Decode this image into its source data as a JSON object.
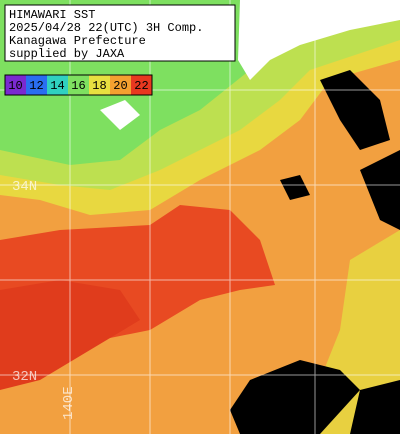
{
  "header": {
    "lines": [
      "HIMAWARI SST",
      "2025/04/28 22(UTC) 3H Comp.",
      "Kanagawa Prefecture",
      "supplied by JAXA"
    ]
  },
  "legend": [
    {
      "label": "10",
      "color": "#7a2ad0"
    },
    {
      "label": "12",
      "color": "#2a6ef0"
    },
    {
      "label": "14",
      "color": "#30d0c0"
    },
    {
      "label": "16",
      "color": "#7ee060"
    },
    {
      "label": "18",
      "color": "#e8e040"
    },
    {
      "label": "20",
      "color": "#f4a030"
    },
    {
      "label": "22",
      "color": "#e83820"
    }
  ],
  "grid_labels": {
    "lat": [
      "34N",
      "32N"
    ],
    "lon": [
      "140E"
    ]
  }
}
